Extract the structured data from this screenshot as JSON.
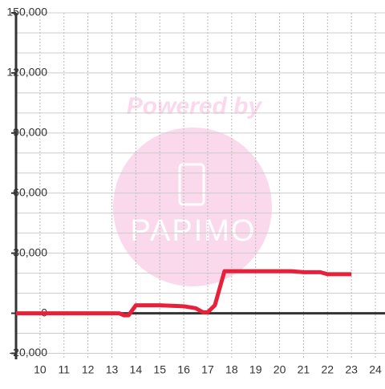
{
  "chart_data": {
    "type": "line",
    "watermark": {
      "line1": "Powered by",
      "line2": "PAPIMO"
    },
    "x": [
      9,
      13.3,
      13.5,
      13.7,
      14,
      15,
      16,
      16.5,
      16.8,
      17,
      17.3,
      17.7,
      20.5,
      21,
      21.7,
      22,
      23
    ],
    "series": [
      {
        "color": "#e8213a",
        "values": [
          0,
          0,
          -1000,
          -1000,
          4000,
          4000,
          3500,
          2500,
          500,
          500,
          4000,
          21000,
          21000,
          20500,
          20500,
          19500,
          19500
        ]
      }
    ],
    "xlim": [
      9,
      24.4
    ],
    "xticks": [
      10,
      11,
      12,
      13,
      14,
      15,
      16,
      17,
      18,
      19,
      20,
      21,
      22,
      23,
      24
    ],
    "ylim": [
      -23000,
      150000
    ],
    "yticks": [
      {
        "value": -20000,
        "label": "-20,000"
      },
      0,
      {
        "value": 30000,
        "label": "30,000"
      },
      {
        "value": 60000,
        "label": "60,000"
      },
      {
        "value": 90000,
        "label": "90,000"
      },
      {
        "value": 120000,
        "label": "120,000"
      },
      {
        "value": 150000,
        "label": "150,000"
      }
    ],
    "yminorticks": [
      -10000,
      10000,
      20000,
      40000,
      50000,
      70000,
      80000,
      100000,
      110000,
      130000,
      140000
    ],
    "grid": true
  }
}
